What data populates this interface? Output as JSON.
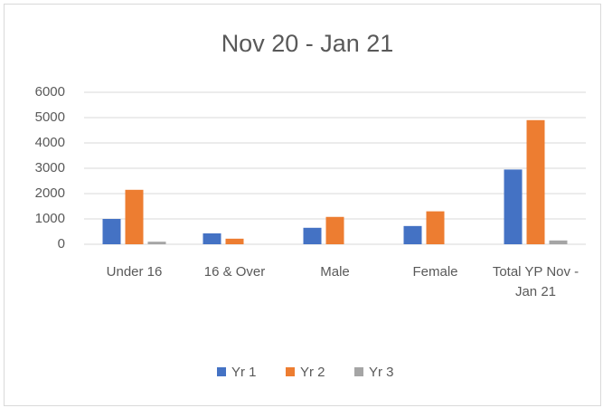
{
  "chart_data": {
    "type": "bar",
    "title": "Nov 20 - Jan 21",
    "categories": [
      "Under 16",
      "16 & Over",
      "Male",
      "Female",
      "Total YP Nov - Jan 21"
    ],
    "series": [
      {
        "name": "Yr 1",
        "color": "#4472c4",
        "values": [
          1000,
          430,
          650,
          720,
          2950
        ]
      },
      {
        "name": "Yr 2",
        "color": "#ed7d31",
        "values": [
          2150,
          220,
          1080,
          1300,
          4900
        ]
      },
      {
        "name": "Yr 3",
        "color": "#a5a5a5",
        "values": [
          100,
          0,
          0,
          0,
          150
        ]
      }
    ],
    "ylim": [
      0,
      6000
    ],
    "yticks": [
      0,
      1000,
      2000,
      3000,
      4000,
      5000,
      6000
    ],
    "grid": true,
    "legend": "bottom"
  }
}
